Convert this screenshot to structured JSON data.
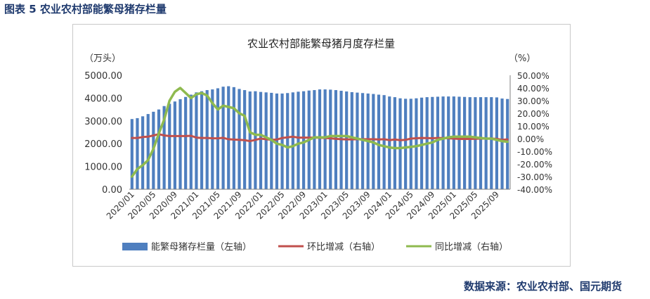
{
  "figure_label": "图表 5  农业农村部能繁母猪存栏量",
  "source_text": "数据来源：农业农村部、国元期货",
  "colors": {
    "bar": "#4f7fbf",
    "mom": "#c0504d",
    "yoy": "#8fba4f",
    "heading": "#1f3a6e"
  },
  "chart_data": {
    "type": "bar",
    "title": "农业农村部能繁母猪月度存栏量",
    "y_left_unit": "（万头）",
    "y_right_unit": "（%）",
    "y_left_ticks": [
      "5000.00",
      "4000.00",
      "3000.00",
      "2000.00",
      "1000.00",
      "0.00"
    ],
    "y_right_ticks": [
      "50.00%",
      "40.00%",
      "30.00%",
      "20.00%",
      "10.00%",
      "0.00%",
      "-10.00%",
      "-20.00%",
      "-30.00%",
      "-40.00%"
    ],
    "ylim_left": [
      0,
      5000
    ],
    "ylim_right": [
      -40,
      50
    ],
    "x_tick_labels": [
      "2020/01",
      "2020/05",
      "2020/09",
      "2021/01",
      "2021/05",
      "2021/09",
      "2022/01",
      "2022/05",
      "2022/09",
      "2023/01",
      "2023/05",
      "2023/09",
      "2024/01",
      "2024/05",
      "2024/09",
      "2025/01",
      "2025/05",
      "2025/09"
    ],
    "legend": [
      "能繁母猪存栏量（左轴）",
      "环比增减（右轴）",
      "同比增减（右轴）"
    ],
    "categories": [
      "2020/01",
      "2020/02",
      "2020/03",
      "2020/04",
      "2020/05",
      "2020/06",
      "2020/07",
      "2020/08",
      "2020/09",
      "2020/10",
      "2020/11",
      "2020/12",
      "2021/01",
      "2021/02",
      "2021/03",
      "2021/04",
      "2021/05",
      "2021/06",
      "2021/07",
      "2021/08",
      "2021/09",
      "2021/10",
      "2021/11",
      "2021/12",
      "2022/01",
      "2022/02",
      "2022/03",
      "2022/04",
      "2022/05",
      "2022/06",
      "2022/07",
      "2022/08",
      "2022/09",
      "2022/10",
      "2022/11",
      "2022/12",
      "2023/01",
      "2023/02",
      "2023/03",
      "2023/04",
      "2023/05",
      "2023/06",
      "2023/07",
      "2023/08",
      "2023/09",
      "2023/10",
      "2023/11",
      "2023/12",
      "2024/01",
      "2024/02",
      "2024/03",
      "2024/04",
      "2024/05",
      "2024/06",
      "2024/07",
      "2024/08",
      "2024/09",
      "2024/10",
      "2024/11",
      "2024/12",
      "2025/01",
      "2025/02",
      "2025/03",
      "2025/04",
      "2025/05",
      "2025/06",
      "2025/07",
      "2025/08",
      "2025/09",
      "2025/10",
      "2025/11"
    ],
    "series": [
      {
        "axis": "left",
        "kind": "bar",
        "values": [
          3080,
          3120,
          3200,
          3300,
          3400,
          3500,
          3650,
          3750,
          3850,
          3950,
          4050,
          4150,
          4250,
          4300,
          4350,
          4380,
          4430,
          4500,
          4520,
          4480,
          4400,
          4350,
          4290,
          4300,
          4270,
          4250,
          4230,
          4200,
          4200,
          4220,
          4250,
          4280,
          4300,
          4330,
          4350,
          4380,
          4380,
          4370,
          4350,
          4320,
          4290,
          4260,
          4240,
          4220,
          4200,
          4180,
          4150,
          4130,
          4070,
          4040,
          3990,
          3970,
          3970,
          3990,
          4020,
          4040,
          4050,
          4060,
          4070,
          4070,
          4070,
          4060,
          4050,
          4040,
          4040,
          4040,
          4040,
          4040,
          4030,
          3980,
          3960
        ]
      },
      {
        "name": "环比增减（右轴）",
        "axis": "right",
        "kind": "line",
        "values": [
          0.5,
          0.5,
          1.2,
          1.5,
          2.5,
          3.5,
          2.5,
          2.0,
          2.0,
          2.0,
          2.0,
          2.2,
          0.8,
          0.5,
          0.5,
          0.3,
          0.2,
          0.6,
          -0.5,
          -0.8,
          -1.0,
          -1.2,
          -2.0,
          -1.0,
          0.0,
          -0.5,
          -1.0,
          -0.8,
          0.5,
          1.0,
          1.5,
          0.8,
          0.8,
          0.8,
          0.8,
          0.6,
          0.5,
          0.2,
          -0.2,
          -0.5,
          -0.6,
          -0.6,
          -0.5,
          -0.5,
          -0.5,
          -0.5,
          -0.7,
          -0.5,
          -1.2,
          -0.7,
          -1.2,
          -1.0,
          0.0,
          0.3,
          0.5,
          0.4,
          0.3,
          0.5,
          0.4,
          0.3,
          0.0,
          -0.3,
          -0.3,
          -0.3,
          -0.1,
          0.0,
          0.0,
          0.0,
          -0.2,
          -1.0,
          -0.6
        ]
      },
      {
        "name": "同比增减（右轴）",
        "axis": "right",
        "kind": "line",
        "values": [
          -30,
          -24,
          -21,
          -17,
          -8,
          4,
          15,
          30,
          37,
          40,
          36,
          32,
          35,
          36,
          34,
          28,
          23,
          26,
          25,
          24,
          20,
          18,
          5,
          3,
          3,
          1,
          -1,
          -4,
          -5,
          -7,
          -6,
          -4,
          -3,
          -1,
          1,
          1,
          1,
          2,
          2,
          2,
          2,
          1,
          0,
          -1,
          -2,
          -3,
          -5,
          -6,
          -7,
          -7.5,
          -7.5,
          -7,
          -6.5,
          -6,
          -5,
          -4,
          -3,
          -1,
          0,
          1,
          1.5,
          1.5,
          1.5,
          1.5,
          1,
          0.5,
          0,
          0,
          -1,
          -2,
          -2.5
        ]
      }
    ]
  }
}
